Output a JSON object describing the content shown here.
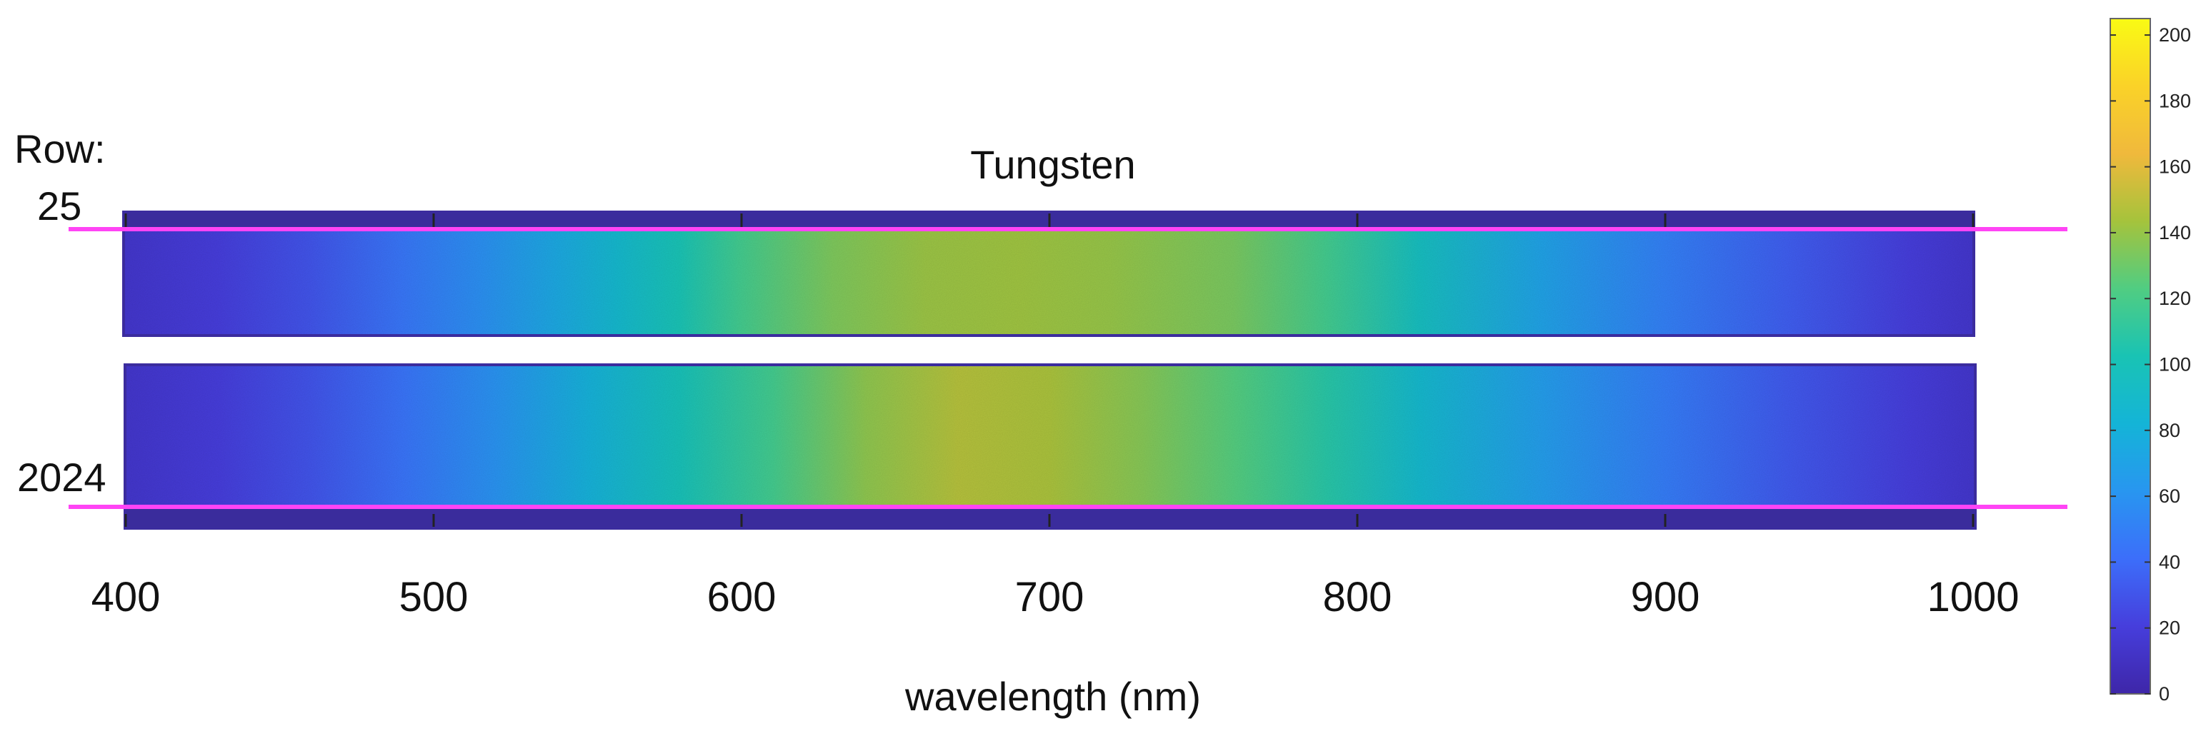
{
  "chart_data": {
    "type": "heatmap",
    "title": "Tungsten",
    "xlabel": "wavelength (nm)",
    "x_ticks": [
      400,
      500,
      600,
      700,
      800,
      900,
      1000
    ],
    "xlim": [
      400,
      1000
    ],
    "row_label_heading": "Row:",
    "row_markers": [
      {
        "label": "25",
        "color": "#ff44f5"
      },
      {
        "label": "2024",
        "color": "#ff44f5"
      }
    ],
    "colorbar": {
      "ticks": [
        0,
        20,
        40,
        60,
        80,
        100,
        120,
        140,
        160,
        180,
        200
      ],
      "range": [
        0,
        205
      ],
      "colormap": "parula"
    },
    "panels": [
      {
        "name": "upper",
        "intensity_profile": [
          {
            "nm": 400,
            "value": 14
          },
          {
            "nm": 430,
            "value": 20
          },
          {
            "nm": 460,
            "value": 30
          },
          {
            "nm": 490,
            "value": 45
          },
          {
            "nm": 515,
            "value": 58
          },
          {
            "nm": 540,
            "value": 74
          },
          {
            "nm": 560,
            "value": 88
          },
          {
            "nm": 580,
            "value": 102
          },
          {
            "nm": 600,
            "value": 118
          },
          {
            "nm": 630,
            "value": 134
          },
          {
            "nm": 660,
            "value": 141
          },
          {
            "nm": 690,
            "value": 142
          },
          {
            "nm": 720,
            "value": 140
          },
          {
            "nm": 760,
            "value": 133
          },
          {
            "nm": 790,
            "value": 118
          },
          {
            "nm": 820,
            "value": 96
          },
          {
            "nm": 860,
            "value": 70
          },
          {
            "nm": 900,
            "value": 50
          },
          {
            "nm": 940,
            "value": 34
          },
          {
            "nm": 980,
            "value": 20
          },
          {
            "nm": 1000,
            "value": 14
          }
        ]
      },
      {
        "name": "lower",
        "intensity_profile": [
          {
            "nm": 400,
            "value": 14
          },
          {
            "nm": 430,
            "value": 20
          },
          {
            "nm": 460,
            "value": 30
          },
          {
            "nm": 490,
            "value": 44
          },
          {
            "nm": 520,
            "value": 60
          },
          {
            "nm": 550,
            "value": 80
          },
          {
            "nm": 580,
            "value": 100
          },
          {
            "nm": 610,
            "value": 118
          },
          {
            "nm": 640,
            "value": 138
          },
          {
            "nm": 670,
            "value": 148
          },
          {
            "nm": 700,
            "value": 145
          },
          {
            "nm": 730,
            "value": 136
          },
          {
            "nm": 760,
            "value": 124
          },
          {
            "nm": 790,
            "value": 108
          },
          {
            "nm": 820,
            "value": 88
          },
          {
            "nm": 860,
            "value": 66
          },
          {
            "nm": 900,
            "value": 48
          },
          {
            "nm": 940,
            "value": 32
          },
          {
            "nm": 980,
            "value": 20
          },
          {
            "nm": 1000,
            "value": 14
          }
        ]
      }
    ]
  }
}
